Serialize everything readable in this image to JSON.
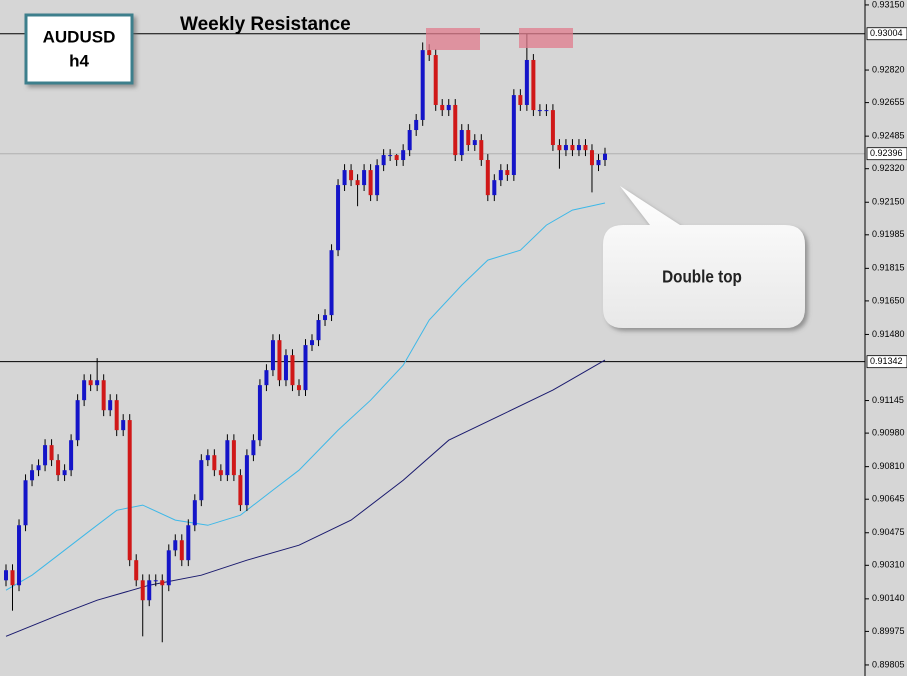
{
  "chart_data": {
    "type": "candlestick",
    "label_box": [
      "AUDUSD",
      "h4"
    ],
    "annotations": [
      "Weekly Resistance",
      "Double top"
    ],
    "up_color": "#1414c8",
    "down_color": "#d01818",
    "ylim": [
      0.89749,
      0.93175
    ],
    "yticks": [
      {
        "value": 0.9315,
        "label": "0.93150"
      },
      {
        "value": 0.9282,
        "label": "0.92820"
      },
      0.92655,
      0.92485,
      {
        "value": 0.9232,
        "label": "0.92320"
      },
      {
        "value": 0.9215,
        "label": "0.92150"
      },
      0.91985,
      0.91815,
      {
        "value": 0.9165,
        "label": "0.91650"
      },
      {
        "value": 0.9148,
        "label": "0.91480"
      },
      0.91145,
      {
        "value": 0.9098,
        "label": "0.90980"
      },
      {
        "value": 0.9081,
        "label": "0.90810"
      },
      0.90645,
      0.90475,
      {
        "value": 0.9031,
        "label": "0.90310"
      },
      {
        "value": 0.9014,
        "label": "0.90140"
      },
      0.89975,
      0.89805
    ],
    "hlines": [
      {
        "value": 0.93004,
        "color": "#000000"
      },
      {
        "value": 0.92396,
        "color": "#b0b0b0"
      },
      {
        "value": 0.91342,
        "color": "#000000"
      }
    ],
    "open": [
      0.90234,
      0.90285,
      0.90209,
      0.90513,
      0.90741,
      0.90792,
      0.90817,
      0.90919,
      0.90843,
      0.90767,
      0.90792,
      0.90944,
      0.91147,
      0.91248,
      0.91223,
      0.91248,
      0.91096,
      0.91147,
      0.90995,
      0.91046,
      0.90336,
      0.90234,
      0.90133,
      0.90234,
      0.90234,
      0.90209,
      0.90386,
      0.90437,
      0.90336,
      0.90513,
      0.9064,
      0.90843,
      0.90868,
      0.90792,
      0.90767,
      0.90944,
      0.90767,
      0.90615,
      0.90868,
      0.90944,
      0.91223,
      0.91299,
      0.91451,
      0.91248,
      0.91375,
      0.91223,
      0.91198,
      0.91426,
      0.91451,
      0.91553,
      0.91578,
      0.91907,
      0.92237,
      0.92313,
      0.92262,
      0.92237,
      0.92313,
      0.92186,
      0.92338,
      0.92389,
      0.92389,
      0.92364,
      0.92414,
      0.92516,
      0.92567,
      0.92921,
      0.92896,
      0.92643,
      0.92617,
      0.92643,
      0.92389,
      0.92516,
      0.9244,
      0.92465,
      0.92364,
      0.92186,
      0.92262,
      0.92313,
      0.92288,
      0.92693,
      0.92643,
      0.92871,
      0.92617,
      0.92617,
      0.92617,
      0.9244,
      0.92414,
      0.9244,
      0.92414,
      0.9244,
      0.92414,
      0.92338,
      0.92364
    ],
    "high": [
      0.90315,
      0.90315,
      0.90543,
      0.90771,
      0.90822,
      0.90847,
      0.90949,
      0.90949,
      0.90873,
      0.90822,
      0.90974,
      0.91177,
      0.91278,
      0.91278,
      0.9136,
      0.91278,
      0.91177,
      0.91177,
      0.91076,
      0.91076,
      0.90366,
      0.90264,
      0.90264,
      0.90264,
      0.90264,
      0.90416,
      0.90467,
      0.90467,
      0.90543,
      0.9067,
      0.90873,
      0.90898,
      0.90898,
      0.90822,
      0.90974,
      0.90974,
      0.90797,
      0.90898,
      0.90974,
      0.91253,
      0.91329,
      0.91481,
      0.91481,
      0.91405,
      0.91405,
      0.91253,
      0.91456,
      0.91481,
      0.91583,
      0.91608,
      0.91937,
      0.92267,
      0.92343,
      0.92343,
      0.92292,
      0.92343,
      0.92343,
      0.92368,
      0.92419,
      0.92419,
      0.92394,
      0.92444,
      0.92546,
      0.92597,
      0.9296,
      0.92951,
      0.92926,
      0.92673,
      0.92673,
      0.92673,
      0.92546,
      0.92546,
      0.92495,
      0.92495,
      0.92394,
      0.92292,
      0.92343,
      0.92343,
      0.92723,
      0.92723,
      0.93004,
      0.92901,
      0.92647,
      0.92647,
      0.92647,
      0.9247,
      0.9247,
      0.9247,
      0.9247,
      0.9247,
      0.92444,
      0.92394,
      0.92426
    ],
    "low": [
      0.90204,
      0.9008,
      0.90179,
      0.90483,
      0.90711,
      0.90762,
      0.90787,
      0.90813,
      0.90737,
      0.90737,
      0.90762,
      0.90914,
      0.91117,
      0.91193,
      0.91193,
      0.91066,
      0.91066,
      0.90965,
      0.90965,
      0.90306,
      0.90204,
      0.8995,
      0.90103,
      0.90204,
      0.8992,
      0.90179,
      0.90356,
      0.90306,
      0.90306,
      0.90483,
      0.9061,
      0.90813,
      0.90762,
      0.90737,
      0.90737,
      0.90737,
      0.90585,
      0.90585,
      0.90838,
      0.90914,
      0.91193,
      0.91269,
      0.91218,
      0.91218,
      0.91193,
      0.91168,
      0.91168,
      0.91396,
      0.91421,
      0.91523,
      0.91548,
      0.91877,
      0.92207,
      0.92232,
      0.9213,
      0.92207,
      0.92156,
      0.92156,
      0.92308,
      0.92359,
      0.92334,
      0.92334,
      0.92384,
      0.92486,
      0.92537,
      0.92866,
      0.92613,
      0.92587,
      0.92587,
      0.92359,
      0.92359,
      0.9241,
      0.9241,
      0.92334,
      0.92156,
      0.92156,
      0.92232,
      0.92258,
      0.92258,
      0.92613,
      0.92613,
      0.92587,
      0.92587,
      0.92587,
      0.9241,
      0.9232,
      0.92384,
      0.92384,
      0.92384,
      0.92384,
      0.922,
      0.92308,
      0.92334
    ],
    "close": [
      0.90285,
      0.90209,
      0.90513,
      0.90741,
      0.90792,
      0.90817,
      0.90919,
      0.90843,
      0.90767,
      0.90792,
      0.90944,
      0.91147,
      0.91248,
      0.91223,
      0.91248,
      0.91096,
      0.91147,
      0.90995,
      0.91046,
      0.90336,
      0.90234,
      0.90133,
      0.90234,
      0.90234,
      0.90209,
      0.90386,
      0.90437,
      0.90336,
      0.90513,
      0.9064,
      0.90843,
      0.90868,
      0.90792,
      0.90767,
      0.90944,
      0.90767,
      0.90615,
      0.90868,
      0.90944,
      0.91223,
      0.91299,
      0.91451,
      0.91248,
      0.91375,
      0.91223,
      0.91198,
      0.91426,
      0.91451,
      0.91553,
      0.91578,
      0.91907,
      0.92237,
      0.92313,
      0.92262,
      0.92237,
      0.92313,
      0.92186,
      0.92338,
      0.92389,
      0.92389,
      0.92364,
      0.92414,
      0.92516,
      0.92567,
      0.92921,
      0.92896,
      0.92643,
      0.92617,
      0.92643,
      0.92389,
      0.92516,
      0.9244,
      0.92465,
      0.92364,
      0.92186,
      0.92262,
      0.92313,
      0.92288,
      0.92693,
      0.92643,
      0.92871,
      0.92617,
      0.92617,
      0.92617,
      0.9244,
      0.92414,
      0.9244,
      0.92414,
      0.9244,
      0.92414,
      0.92338,
      0.92364,
      0.92396
    ],
    "lines": [
      {
        "color": "#3db8e8",
        "x": [
          0,
          4,
          8,
          13,
          17,
          21,
          26,
          31,
          36,
          41,
          45,
          51,
          56,
          61,
          65,
          70,
          74,
          79,
          83,
          87,
          92
        ],
        "values": [
          0.90184,
          0.9026,
          0.90361,
          0.90488,
          0.90589,
          0.90615,
          0.90539,
          0.90513,
          0.90564,
          0.90691,
          0.90792,
          0.90995,
          0.91147,
          0.91324,
          0.91553,
          0.9173,
          0.91857,
          0.91907,
          0.92034,
          0.9211,
          0.92146
        ]
      },
      {
        "color": "#1a1a6e",
        "x": [
          0,
          8,
          14,
          22,
          30,
          37,
          45,
          53,
          61,
          68,
          76,
          84,
          92
        ],
        "values": [
          0.8995,
          0.90057,
          0.90133,
          0.90209,
          0.9026,
          0.90336,
          0.90412,
          0.90539,
          0.90741,
          0.90944,
          0.91071,
          0.91198,
          0.9135
        ]
      }
    ]
  }
}
